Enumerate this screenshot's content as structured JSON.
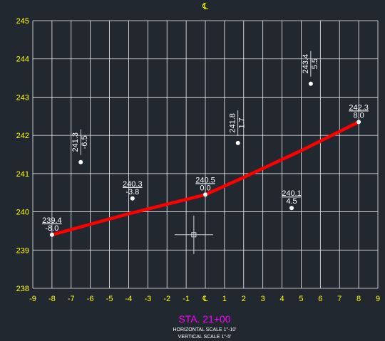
{
  "centerline_mark": "℄",
  "station_label": "STA. 21+00",
  "horizontal_scale": "HORIZONTAL SCALE 1\"-10'",
  "vertical_scale": "VERTICAL SCALE 1\"-5'",
  "colors": {
    "background": "#212830",
    "grid": "#f2f2f2",
    "axis_text": "#ffff00",
    "profile": "#ff0000",
    "station": "#ff00ff",
    "points": "#ffffff"
  },
  "chart_data": {
    "type": "line",
    "xlim": [
      -9,
      9
    ],
    "ylim": [
      238,
      245
    ],
    "grid": true,
    "x_ticks": [
      "-9",
      "-8",
      "-7",
      "-6",
      "-5",
      "-4",
      "-3",
      "-2",
      "-1",
      "℄",
      "1",
      "2",
      "3",
      "4",
      "5",
      "6",
      "7",
      "8",
      "9"
    ],
    "y_ticks": [
      "238",
      "239",
      "240",
      "241",
      "242",
      "243",
      "244",
      "245"
    ],
    "profile_line": {
      "x": [
        -8,
        -4,
        0,
        2,
        5,
        8
      ],
      "y": [
        239.4,
        239.95,
        240.45,
        240.9,
        241.6,
        242.35
      ]
    },
    "points": [
      {
        "x": -8.0,
        "y": 239.4,
        "elev": "239.4",
        "offset": "-8.0",
        "orient": "h"
      },
      {
        "x": -6.5,
        "y": 241.3,
        "elev": "241.3",
        "offset": "-6.5",
        "orient": "v"
      },
      {
        "x": -3.8,
        "y": 240.35,
        "elev": "240.3",
        "offset": "-3.8",
        "orient": "h"
      },
      {
        "x": 0.0,
        "y": 240.45,
        "elev": "240.5",
        "offset": "0.0",
        "orient": "h"
      },
      {
        "x": 1.7,
        "y": 241.8,
        "elev": "241.8",
        "offset": "1.7",
        "orient": "v"
      },
      {
        "x": 4.5,
        "y": 240.1,
        "elev": "240.1",
        "offset": "4.5",
        "orient": "h"
      },
      {
        "x": 5.5,
        "y": 243.35,
        "elev": "243.4",
        "offset": "5.5",
        "orient": "v"
      },
      {
        "x": 8.0,
        "y": 242.35,
        "elev": "242.3",
        "offset": "8.0",
        "orient": "h"
      }
    ],
    "cursor": {
      "x": -0.6,
      "y": 239.4
    }
  }
}
